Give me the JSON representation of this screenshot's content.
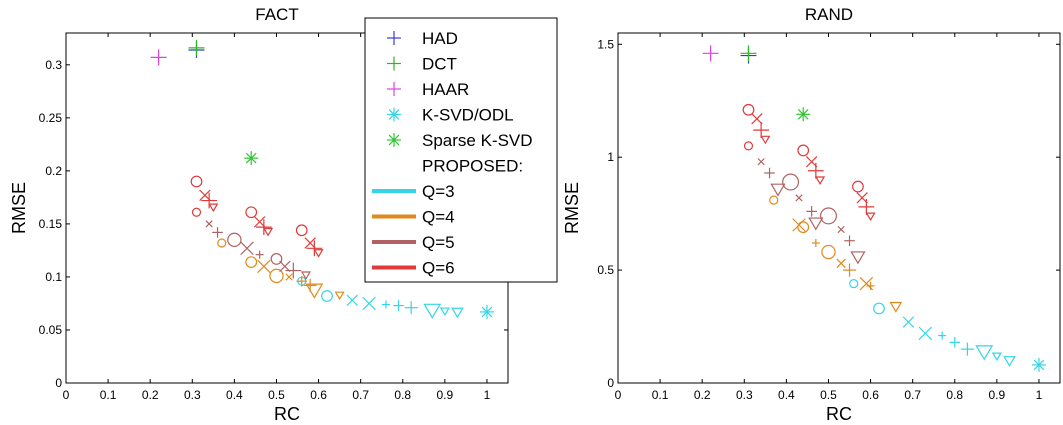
{
  "chart_data": [
    {
      "type": "scatter",
      "title": "FACT",
      "xlabel": "RC",
      "ylabel": "RMSE",
      "xlim": [
        0,
        1.05
      ],
      "ylim": [
        0,
        0.33
      ],
      "xticks": [
        "0",
        "0.1",
        "0.2",
        "0.3",
        "0.4",
        "0.5",
        "0.6",
        "0.7",
        "0.8",
        "0.9",
        "1"
      ],
      "yticks": [
        "0",
        "0.05",
        "0.1",
        "0.15",
        "0.2",
        "0.25",
        "0.3"
      ],
      "grid": false,
      "series": [
        {
          "name": "HAD",
          "marker": "plus",
          "color": "#3b3bd9",
          "points": [
            [
              0.31,
              0.314
            ]
          ]
        },
        {
          "name": "DCT",
          "marker": "plus",
          "color": "#2db52d",
          "points": [
            [
              0.31,
              0.316
            ]
          ]
        },
        {
          "name": "HAAR",
          "marker": "plus",
          "color": "#e040e0",
          "points": [
            [
              0.22,
              0.307
            ]
          ]
        },
        {
          "name": "K-SVD/ODL",
          "marker": "asterisk",
          "color": "#33d6e6",
          "points": [
            [
              1.0,
              0.067
            ]
          ]
        },
        {
          "name": "Sparse K-SVD",
          "marker": "asterisk",
          "color": "#2fc72f",
          "points": [
            [
              0.44,
              0.212
            ]
          ]
        },
        {
          "name": "Q=3",
          "color": "#33d6e6",
          "points": [
            {
              "x": 0.56,
              "y": 0.096,
              "m": "circle"
            },
            {
              "x": 0.62,
              "y": 0.082,
              "m": "circle"
            },
            {
              "x": 0.68,
              "y": 0.078,
              "m": "cross"
            },
            {
              "x": 0.72,
              "y": 0.075,
              "m": "cross"
            },
            {
              "x": 0.76,
              "y": 0.074,
              "m": "plus"
            },
            {
              "x": 0.79,
              "y": 0.073,
              "m": "plus"
            },
            {
              "x": 0.82,
              "y": 0.071,
              "m": "plus"
            },
            {
              "x": 0.87,
              "y": 0.069,
              "m": "tri"
            },
            {
              "x": 0.9,
              "y": 0.068,
              "m": "tri"
            },
            {
              "x": 0.93,
              "y": 0.067,
              "m": "tri"
            }
          ]
        },
        {
          "name": "Q=4",
          "color": "#e08a1e",
          "points": [
            {
              "x": 0.37,
              "y": 0.132,
              "m": "circle"
            },
            {
              "x": 0.44,
              "y": 0.114,
              "m": "circle"
            },
            {
              "x": 0.5,
              "y": 0.101,
              "m": "circle"
            },
            {
              "x": 0.47,
              "y": 0.11,
              "m": "cross"
            },
            {
              "x": 0.53,
              "y": 0.1,
              "m": "cross"
            },
            {
              "x": 0.56,
              "y": 0.096,
              "m": "plus"
            },
            {
              "x": 0.58,
              "y": 0.092,
              "m": "plus"
            },
            {
              "x": 0.59,
              "y": 0.088,
              "m": "tri"
            },
            {
              "x": 0.65,
              "y": 0.083,
              "m": "tri"
            }
          ]
        },
        {
          "name": "Q=5",
          "color": "#b06262",
          "points": [
            {
              "x": 0.34,
              "y": 0.15,
              "m": "cross"
            },
            {
              "x": 0.36,
              "y": 0.142,
              "m": "plus"
            },
            {
              "x": 0.4,
              "y": 0.135,
              "m": "circle"
            },
            {
              "x": 0.43,
              "y": 0.127,
              "m": "cross"
            },
            {
              "x": 0.46,
              "y": 0.121,
              "m": "plus"
            },
            {
              "x": 0.5,
              "y": 0.117,
              "m": "circle"
            },
            {
              "x": 0.52,
              "y": 0.11,
              "m": "cross"
            },
            {
              "x": 0.54,
              "y": 0.106,
              "m": "plus"
            },
            {
              "x": 0.57,
              "y": 0.102,
              "m": "tri"
            }
          ]
        },
        {
          "name": "Q=6",
          "color": "#e03a3a",
          "points": [
            {
              "x": 0.31,
              "y": 0.161,
              "m": "circle"
            },
            {
              "x": 0.31,
              "y": 0.19,
              "m": "circle"
            },
            {
              "x": 0.33,
              "y": 0.177,
              "m": "cross"
            },
            {
              "x": 0.34,
              "y": 0.172,
              "m": "plus"
            },
            {
              "x": 0.35,
              "y": 0.166,
              "m": "tri"
            },
            {
              "x": 0.44,
              "y": 0.161,
              "m": "circle"
            },
            {
              "x": 0.46,
              "y": 0.152,
              "m": "cross"
            },
            {
              "x": 0.47,
              "y": 0.147,
              "m": "plus"
            },
            {
              "x": 0.48,
              "y": 0.143,
              "m": "tri"
            },
            {
              "x": 0.56,
              "y": 0.144,
              "m": "circle"
            },
            {
              "x": 0.58,
              "y": 0.132,
              "m": "cross"
            },
            {
              "x": 0.59,
              "y": 0.127,
              "m": "plus"
            },
            {
              "x": 0.6,
              "y": 0.123,
              "m": "tri"
            }
          ]
        }
      ]
    },
    {
      "type": "scatter",
      "title": "RAND",
      "xlabel": "RC",
      "ylabel": "RMSE",
      "xlim": [
        0,
        1.05
      ],
      "ylim": [
        0,
        1.55
      ],
      "xticks": [
        "0",
        "0.1",
        "0.2",
        "0.3",
        "0.4",
        "0.5",
        "0.6",
        "0.7",
        "0.8",
        "0.9",
        "1"
      ],
      "yticks": [
        "0",
        "0.5",
        "1",
        "1.5"
      ],
      "grid": false,
      "series": [
        {
          "name": "HAD",
          "marker": "plus",
          "color": "#3b3bd9",
          "points": [
            [
              0.31,
              1.45
            ]
          ]
        },
        {
          "name": "DCT",
          "marker": "plus",
          "color": "#2db52d",
          "points": [
            [
              0.31,
              1.46
            ]
          ]
        },
        {
          "name": "HAAR",
          "marker": "plus",
          "color": "#e040e0",
          "points": [
            [
              0.22,
              1.46
            ]
          ]
        },
        {
          "name": "K-SVD/ODL",
          "marker": "asterisk",
          "color": "#33d6e6",
          "points": [
            [
              1.0,
              0.08
            ]
          ]
        },
        {
          "name": "Sparse K-SVD",
          "marker": "asterisk",
          "color": "#2fc72f",
          "points": [
            [
              0.44,
              1.19
            ]
          ]
        },
        {
          "name": "Q=3",
          "color": "#33d6e6",
          "points": [
            {
              "x": 0.56,
              "y": 0.44,
              "m": "circle"
            },
            {
              "x": 0.62,
              "y": 0.33,
              "m": "circle"
            },
            {
              "x": 0.69,
              "y": 0.27,
              "m": "cross"
            },
            {
              "x": 0.73,
              "y": 0.22,
              "m": "cross"
            },
            {
              "x": 0.77,
              "y": 0.21,
              "m": "plus"
            },
            {
              "x": 0.8,
              "y": 0.18,
              "m": "plus"
            },
            {
              "x": 0.83,
              "y": 0.15,
              "m": "plus"
            },
            {
              "x": 0.87,
              "y": 0.14,
              "m": "tri"
            },
            {
              "x": 0.9,
              "y": 0.12,
              "m": "tri"
            },
            {
              "x": 0.93,
              "y": 0.1,
              "m": "tri"
            }
          ]
        },
        {
          "name": "Q=4",
          "color": "#e08a1e",
          "points": [
            {
              "x": 0.37,
              "y": 0.81,
              "m": "circle"
            },
            {
              "x": 0.44,
              "y": 0.69,
              "m": "circle"
            },
            {
              "x": 0.5,
              "y": 0.58,
              "m": "circle"
            },
            {
              "x": 0.43,
              "y": 0.7,
              "m": "cross"
            },
            {
              "x": 0.47,
              "y": 0.62,
              "m": "plus"
            },
            {
              "x": 0.53,
              "y": 0.53,
              "m": "cross"
            },
            {
              "x": 0.55,
              "y": 0.5,
              "m": "plus"
            },
            {
              "x": 0.59,
              "y": 0.44,
              "m": "cross"
            },
            {
              "x": 0.6,
              "y": 0.43,
              "m": "plus"
            },
            {
              "x": 0.66,
              "y": 0.34,
              "m": "tri"
            }
          ]
        },
        {
          "name": "Q=5",
          "color": "#b06262",
          "points": [
            {
              "x": 0.34,
              "y": 0.98,
              "m": "cross"
            },
            {
              "x": 0.36,
              "y": 0.93,
              "m": "plus"
            },
            {
              "x": 0.38,
              "y": 0.86,
              "m": "tri"
            },
            {
              "x": 0.41,
              "y": 0.89,
              "m": "circle"
            },
            {
              "x": 0.43,
              "y": 0.82,
              "m": "cross"
            },
            {
              "x": 0.46,
              "y": 0.76,
              "m": "plus"
            },
            {
              "x": 0.47,
              "y": 0.71,
              "m": "tri"
            },
            {
              "x": 0.5,
              "y": 0.74,
              "m": "circle"
            },
            {
              "x": 0.53,
              "y": 0.68,
              "m": "cross"
            },
            {
              "x": 0.55,
              "y": 0.63,
              "m": "plus"
            },
            {
              "x": 0.57,
              "y": 0.56,
              "m": "tri"
            }
          ]
        },
        {
          "name": "Q=6",
          "color": "#e03a3a",
          "points": [
            {
              "x": 0.31,
              "y": 1.05,
              "m": "circle"
            },
            {
              "x": 0.31,
              "y": 1.21,
              "m": "circle"
            },
            {
              "x": 0.33,
              "y": 1.17,
              "m": "cross"
            },
            {
              "x": 0.34,
              "y": 1.12,
              "m": "plus"
            },
            {
              "x": 0.35,
              "y": 1.08,
              "m": "tri"
            },
            {
              "x": 0.44,
              "y": 1.03,
              "m": "circle"
            },
            {
              "x": 0.46,
              "y": 0.98,
              "m": "cross"
            },
            {
              "x": 0.47,
              "y": 0.94,
              "m": "plus"
            },
            {
              "x": 0.48,
              "y": 0.9,
              "m": "tri"
            },
            {
              "x": 0.57,
              "y": 0.87,
              "m": "circle"
            },
            {
              "x": 0.58,
              "y": 0.82,
              "m": "cross"
            },
            {
              "x": 0.59,
              "y": 0.78,
              "m": "plus"
            },
            {
              "x": 0.6,
              "y": 0.74,
              "m": "tri"
            }
          ]
        }
      ]
    }
  ],
  "legend": {
    "placement": "between panels",
    "items": [
      {
        "label": "HAD",
        "kind": "plus",
        "color": "#3b3bd9"
      },
      {
        "label": "DCT",
        "kind": "plus",
        "color": "#2db52d"
      },
      {
        "label": "HAAR",
        "kind": "plus",
        "color": "#e040e0"
      },
      {
        "label": "K-SVD/ODL",
        "kind": "asterisk",
        "color": "#33d6e6"
      },
      {
        "label": "Sparse K-SVD",
        "kind": "asterisk",
        "color": "#2fc72f"
      },
      {
        "label": "PROPOSED:",
        "kind": "none",
        "color": "#000000"
      },
      {
        "label": "Q=3",
        "kind": "line",
        "color": "#33d6e6"
      },
      {
        "label": "Q=4",
        "kind": "line",
        "color": "#e08a1e"
      },
      {
        "label": "Q=5",
        "kind": "line",
        "color": "#b06262"
      },
      {
        "label": "Q=6",
        "kind": "line",
        "color": "#e03a3a"
      }
    ]
  }
}
